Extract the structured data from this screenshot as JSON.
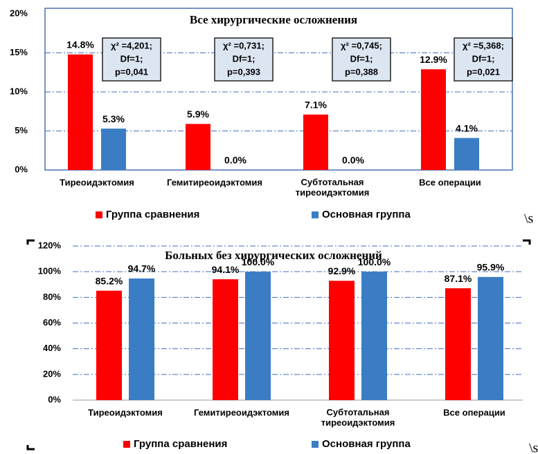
{
  "chart_data": [
    {
      "type": "bar",
      "title": "Все хирургические осложнения",
      "categories": [
        "Тиреоидэктомия",
        "Гемитиреоидэктомия",
        "Субтотальная\nтиреоидэктомия",
        "Все операции"
      ],
      "series": [
        {
          "name": "Группа сравнения",
          "color": "#ff0000",
          "values": [
            14.8,
            5.9,
            7.1,
            12.9
          ],
          "value_labels": [
            "14.8%",
            "5.9%",
            "7.1%",
            "12.9%"
          ]
        },
        {
          "name": "Основная группа",
          "color": "#3a7dc4",
          "values": [
            5.3,
            0.0,
            0.0,
            4.1
          ],
          "value_labels": [
            "5.3%",
            "0.0%",
            "0.0%",
            "4.1%"
          ]
        }
      ],
      "ylim": [
        0,
        20
      ],
      "yticks": [
        {
          "value": 0,
          "label": "0%"
        },
        {
          "value": 5,
          "label": "5%"
        },
        {
          "value": 10,
          "label": "10%"
        },
        {
          "value": 15,
          "label": "15%"
        },
        {
          "value": 20,
          "label": "20%"
        }
      ],
      "grid": true,
      "legend": "bottom",
      "annotations": [
        {
          "lines": [
            "χ² =4,201;",
            "Df=1;",
            "p=0,041"
          ],
          "color": "#000000"
        },
        {
          "lines": [
            "χ² =0,731;",
            "Df=1;",
            "p=0,393"
          ],
          "color": "#ff0000"
        },
        {
          "lines": [
            "χ² =0,745;",
            "Df=1;",
            "p=0,388"
          ],
          "color": "#ff0000"
        },
        {
          "lines": [
            "χ² =5,368;",
            "Df=1;",
            "p=0,021"
          ],
          "color": "#000000"
        }
      ],
      "stray_text": "\\s"
    },
    {
      "type": "bar",
      "title": "Больных без хирургических осложнений",
      "categories": [
        "Тиреоидэктомия",
        "Гемитиреоидэктомия",
        "Субтотальная\nтиреоидэктомия",
        "Все операции"
      ],
      "series": [
        {
          "name": "Группа сравнения",
          "color": "#ff0000",
          "values": [
            85.2,
            94.1,
            92.9,
            87.1
          ],
          "value_labels": [
            "85.2%",
            "94.1%",
            "92.9%",
            "87.1%"
          ]
        },
        {
          "name": "Основная группа",
          "color": "#3a7dc4",
          "values": [
            94.7,
            100.0,
            100.0,
            95.9
          ],
          "value_labels": [
            "94.7%",
            "100.0%",
            "100.0%",
            "95.9%"
          ]
        }
      ],
      "ylim": [
        0,
        120
      ],
      "yticks": [
        {
          "value": 0,
          "label": "0%"
        },
        {
          "value": 20,
          "label": "20%"
        },
        {
          "value": 40,
          "label": "40%"
        },
        {
          "value": 60,
          "label": "60%"
        },
        {
          "value": 80,
          "label": "80%"
        },
        {
          "value": 100,
          "label": "100%"
        },
        {
          "value": 120,
          "label": "120%"
        }
      ],
      "grid": true,
      "legend": "bottom",
      "stray_text": "\\s"
    }
  ]
}
